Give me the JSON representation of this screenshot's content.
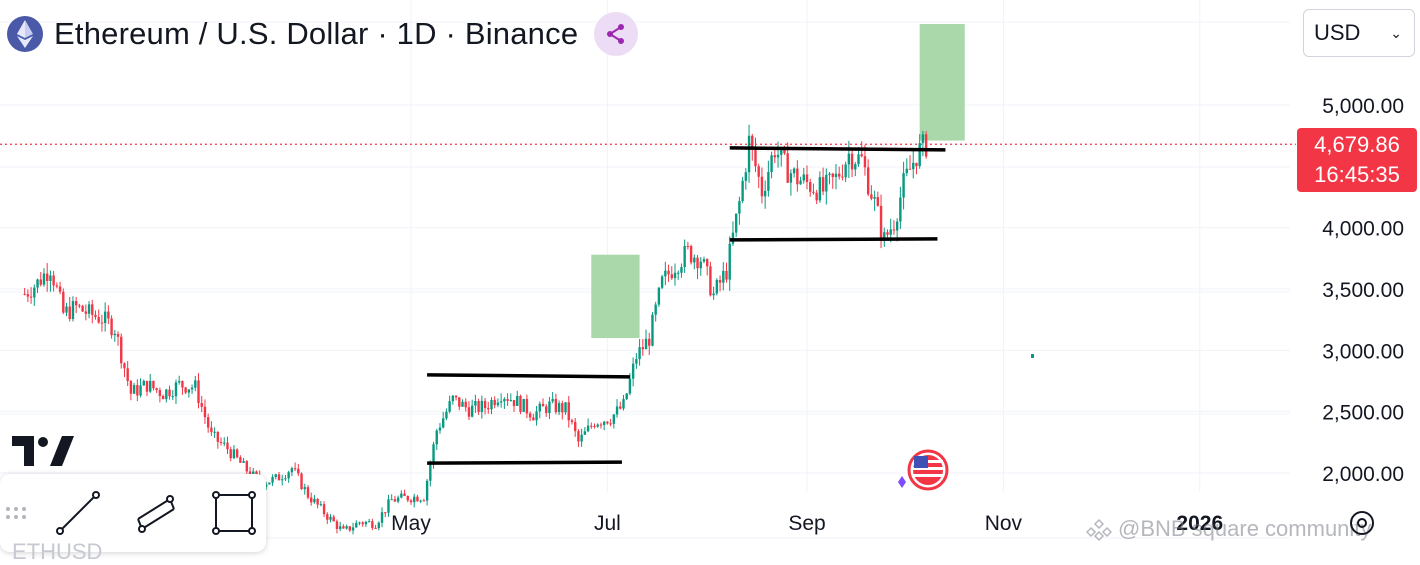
{
  "header": {
    "title": "Ethereum / U.S. Dollar · 1D · Binance",
    "currency": "USD"
  },
  "price_label": {
    "price": "4,679.86",
    "countdown": "16:45:35"
  },
  "watermark": {
    "site": "@BNB square community",
    "partial": "ETHUSD"
  },
  "colors": {
    "up": "#089981",
    "down": "#f23645",
    "target_box": "#a5d6a7",
    "grid": "#f0f3fa",
    "price_line": "#f23645",
    "axis_text": "#131722"
  },
  "chart_data": {
    "type": "candlestick",
    "title": "Ethereum / U.S. Dollar · 1D · Binance",
    "y_ticks": [
      2000,
      2500,
      3000,
      3500,
      4000,
      5000
    ],
    "y_tick_labels": [
      "2,000.00",
      "2,500.00",
      "3,000.00",
      "3,500.00",
      "4,000.00",
      "5,000.00"
    ],
    "x_ticks": [
      "May",
      "Jul",
      "Sep",
      "Nov",
      "2026"
    ],
    "last_price": 4679.86,
    "series": [
      {
        "name": "ETHUSD",
        "points": [
          [
            "2025-01-01",
            3460
          ],
          [
            "2025-01-05",
            3550
          ],
          [
            "2025-01-09",
            3680
          ],
          [
            "2025-01-13",
            3300
          ],
          [
            "2025-01-17",
            3350
          ],
          [
            "2025-01-21",
            3300
          ],
          [
            "2025-01-25",
            3260
          ],
          [
            "2025-01-29",
            3180
          ],
          [
            "2025-02-03",
            2650
          ],
          [
            "2025-02-08",
            2720
          ],
          [
            "2025-02-13",
            2650
          ],
          [
            "2025-02-18",
            2720
          ],
          [
            "2025-02-23",
            2700
          ],
          [
            "2025-02-28",
            2300
          ],
          [
            "2025-03-05",
            2200
          ],
          [
            "2025-03-10",
            2050
          ],
          [
            "2025-03-15",
            1920
          ],
          [
            "2025-03-20",
            1950
          ],
          [
            "2025-03-25",
            2040
          ],
          [
            "2025-03-30",
            1820
          ],
          [
            "2025-04-05",
            1650
          ],
          [
            "2025-04-10",
            1520
          ],
          [
            "2025-04-15",
            1600
          ],
          [
            "2025-04-20",
            1590
          ],
          [
            "2025-04-25",
            1780
          ],
          [
            "2025-04-30",
            1800
          ],
          [
            "2025-05-05",
            1810
          ],
          [
            "2025-05-09",
            2350
          ],
          [
            "2025-05-14",
            2600
          ],
          [
            "2025-05-19",
            2520
          ],
          [
            "2025-05-24",
            2540
          ],
          [
            "2025-05-29",
            2650
          ],
          [
            "2025-06-03",
            2580
          ],
          [
            "2025-06-08",
            2480
          ],
          [
            "2025-06-13",
            2550
          ],
          [
            "2025-06-18",
            2520
          ],
          [
            "2025-06-22",
            2250
          ],
          [
            "2025-06-27",
            2420
          ],
          [
            "2025-07-02",
            2450
          ],
          [
            "2025-07-06",
            2550
          ],
          [
            "2025-07-10",
            2950
          ],
          [
            "2025-07-14",
            3100
          ],
          [
            "2025-07-18",
            3550
          ],
          [
            "2025-07-22",
            3700
          ],
          [
            "2025-07-26",
            3800
          ],
          [
            "2025-07-30",
            3750
          ],
          [
            "2025-08-03",
            3450
          ],
          [
            "2025-08-07",
            3650
          ],
          [
            "2025-08-11",
            4200
          ],
          [
            "2025-08-14",
            4700
          ],
          [
            "2025-08-18",
            4300
          ],
          [
            "2025-08-22",
            4650
          ],
          [
            "2025-08-25",
            4500
          ],
          [
            "2025-08-29",
            4400
          ],
          [
            "2025-09-02",
            4350
          ],
          [
            "2025-09-06",
            4300
          ],
          [
            "2025-09-10",
            4400
          ],
          [
            "2025-09-14",
            4600
          ],
          [
            "2025-09-18",
            4550
          ],
          [
            "2025-09-22",
            4200
          ],
          [
            "2025-09-25",
            3900
          ],
          [
            "2025-09-28",
            4050
          ],
          [
            "2025-10-01",
            4350
          ],
          [
            "2025-10-05",
            4600
          ],
          [
            "2025-10-08",
            4680
          ]
        ]
      }
    ],
    "annotations": {
      "ranges": [
        {
          "start": "2025-05-06",
          "end": "2025-07-08",
          "top": 2800,
          "bottom": 2080
        },
        {
          "start": "2025-08-08",
          "end": "2025-10-14",
          "top": 4650,
          "bottom": 3900
        }
      ],
      "target_boxes": [
        {
          "start": "2025-06-26",
          "end": "2025-07-11",
          "top": 3780,
          "bottom": 3100
        },
        {
          "start": "2025-10-06",
          "end": "2025-10-20",
          "top": 5660,
          "bottom": 4710
        }
      ]
    }
  }
}
